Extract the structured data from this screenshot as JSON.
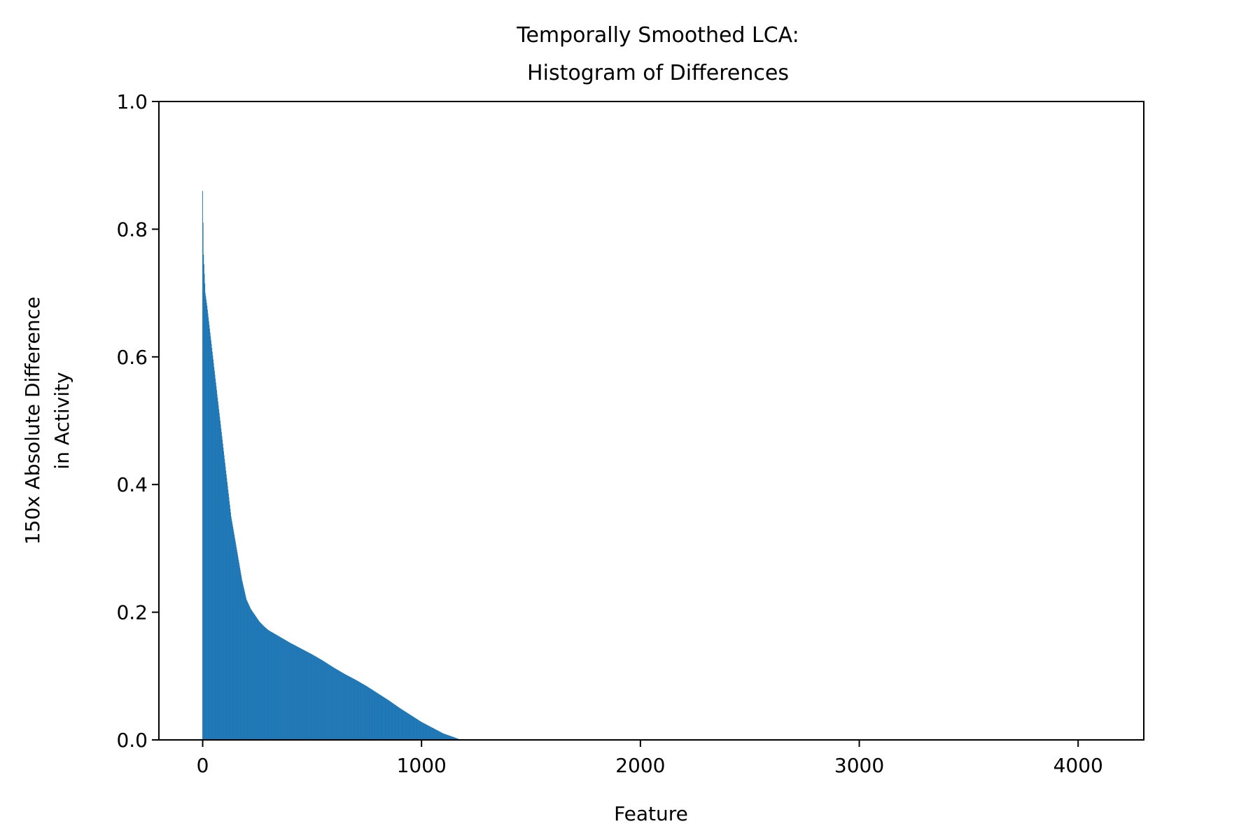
{
  "chart_data": {
    "type": "bar",
    "title": [
      "Temporally Smoothed LCA:",
      "Histogram of Differences"
    ],
    "xlabel": "Feature",
    "ylabel": [
      "150x Absolute Difference",
      "in Activity"
    ],
    "xlim": [
      -200,
      4300
    ],
    "ylim": [
      0,
      1.0
    ],
    "xticks": [
      0,
      1000,
      2000,
      3000,
      4000
    ],
    "xtick_labels": [
      "0",
      "1000",
      "2000",
      "3000",
      "4000"
    ],
    "yticks": [
      0.0,
      0.2,
      0.4,
      0.6,
      0.8,
      1.0
    ],
    "ytick_labels": [
      "0.0",
      "0.2",
      "0.4",
      "0.6",
      "0.8",
      "1.0"
    ],
    "grid": false,
    "color": "#1f77b4",
    "series": [
      {
        "x": [
          0,
          4,
          8,
          12,
          20,
          30,
          40,
          50,
          60,
          70,
          80,
          90,
          100,
          110,
          120,
          130,
          140,
          150,
          160,
          170,
          180,
          190,
          200,
          220,
          240,
          260,
          280,
          300,
          350,
          400,
          450,
          500,
          550,
          600,
          650,
          700,
          750,
          800,
          850,
          900,
          950,
          1000,
          1050,
          1100,
          1150,
          1180
        ],
        "values": [
          0.86,
          0.76,
          0.73,
          0.7,
          0.68,
          0.65,
          0.62,
          0.59,
          0.56,
          0.53,
          0.5,
          0.47,
          0.44,
          0.41,
          0.38,
          0.35,
          0.33,
          0.31,
          0.29,
          0.27,
          0.25,
          0.235,
          0.22,
          0.205,
          0.195,
          0.185,
          0.178,
          0.172,
          0.162,
          0.152,
          0.143,
          0.134,
          0.124,
          0.113,
          0.103,
          0.094,
          0.084,
          0.073,
          0.062,
          0.05,
          0.039,
          0.028,
          0.019,
          0.01,
          0.004,
          0.0
        ]
      }
    ]
  }
}
